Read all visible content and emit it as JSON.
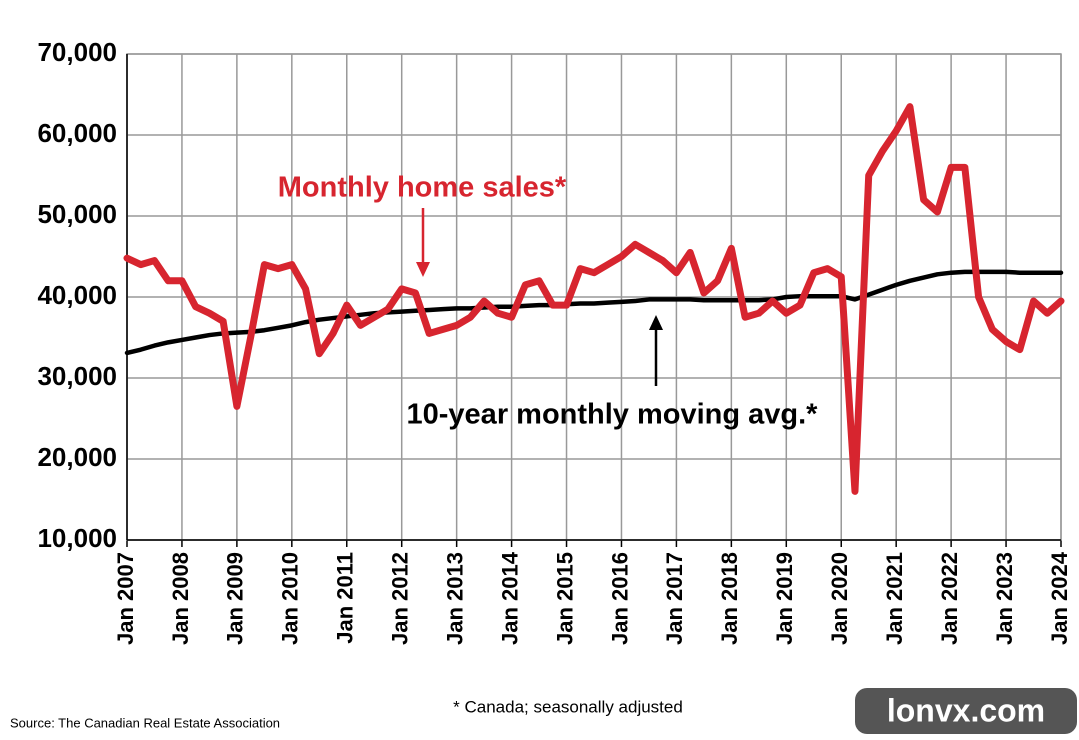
{
  "chart_data": {
    "type": "line",
    "categories": [
      "Jan 2007",
      null,
      null,
      null,
      "Jan 2008",
      null,
      null,
      null,
      "Jan 2009",
      null,
      null,
      null,
      "Jan 2010",
      null,
      null,
      null,
      "Jan 2011",
      null,
      null,
      null,
      "Jan 2012",
      null,
      null,
      null,
      "Jan 2013",
      null,
      null,
      null,
      "Jan 2014",
      null,
      null,
      null,
      "Jan 2015",
      null,
      null,
      null,
      "Jan 2016",
      null,
      null,
      null,
      "Jan 2017",
      null,
      null,
      null,
      "Jan 2018",
      null,
      null,
      null,
      "Jan 2019",
      null,
      null,
      null,
      "Jan 2020",
      null,
      null,
      null,
      "Jan 2021",
      null,
      null,
      null,
      "Jan 2022",
      null,
      null,
      null,
      "Jan 2023",
      null,
      null,
      null,
      "Jan 2024"
    ],
    "series": [
      {
        "name": "Monthly home sales*",
        "color": "#d7252f",
        "values": [
          44800,
          44000,
          44500,
          42000,
          42000,
          38800,
          38000,
          37000,
          26500,
          35000,
          44000,
          43500,
          44000,
          41000,
          33000,
          35500,
          39000,
          36500,
          37500,
          38500,
          41000,
          40500,
          35500,
          36000,
          36500,
          37500,
          39500,
          38000,
          37500,
          41500,
          42000,
          39000,
          39000,
          43500,
          43000,
          44000,
          45000,
          46500,
          45500,
          44500,
          43000,
          45500,
          40500,
          42000,
          46000,
          37500,
          38000,
          39500,
          38000,
          39000,
          43000,
          43500,
          42500,
          16000,
          55000,
          58000,
          60500,
          63500,
          52000,
          50500,
          56000,
          56000,
          40000,
          36000,
          34500,
          33500,
          39500,
          38000,
          39500
        ]
      },
      {
        "name": "10-year monthly moving avg.*",
        "color": "#000000",
        "values": [
          33100,
          33500,
          34000,
          34400,
          34700,
          35000,
          35300,
          35500,
          35600,
          35700,
          35900,
          36200,
          36500,
          36900,
          37200,
          37400,
          37600,
          37800,
          38000,
          38100,
          38200,
          38300,
          38400,
          38500,
          38600,
          38600,
          38700,
          38800,
          38800,
          38900,
          39000,
          39000,
          39100,
          39200,
          39200,
          39300,
          39400,
          39500,
          39700,
          39700,
          39700,
          39700,
          39600,
          39600,
          39600,
          39600,
          39600,
          39700,
          40000,
          40100,
          40100,
          40100,
          40100,
          39700,
          40300,
          40900,
          41500,
          42000,
          42400,
          42800,
          43000,
          43100,
          43100,
          43100,
          43100,
          43000,
          43000,
          43000,
          43000
        ]
      }
    ],
    "ylim": [
      10000,
      70000
    ],
    "yticks": [
      {
        "value": 10000,
        "label": "10,000"
      },
      {
        "value": 20000,
        "label": "20,000"
      },
      {
        "value": 30000,
        "label": "30,000"
      },
      {
        "value": 40000,
        "label": "40,000"
      },
      {
        "value": 50000,
        "label": "50,000"
      },
      {
        "value": 60000,
        "label": "60,000"
      },
      {
        "value": 70000,
        "label": "70,000"
      }
    ],
    "grid": true,
    "footnote": "* Canada; seasonally adjusted",
    "source": "Source: The Canadian Real Estate Association",
    "watermark": "lonvx.com"
  }
}
